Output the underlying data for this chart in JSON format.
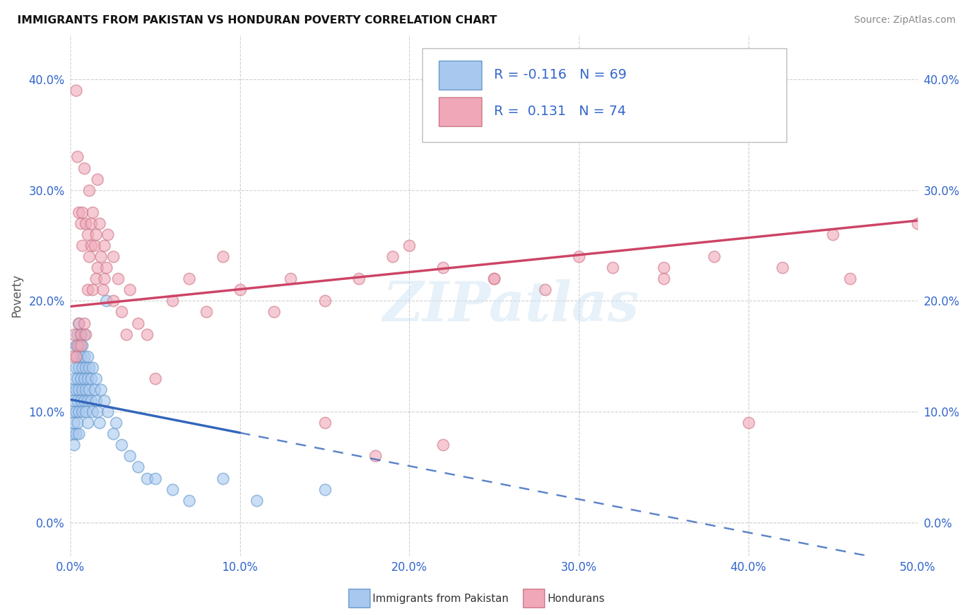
{
  "title": "IMMIGRANTS FROM PAKISTAN VS HONDURAN POVERTY CORRELATION CHART",
  "source": "Source: ZipAtlas.com",
  "xlabel_blue": "Immigrants from Pakistan",
  "xlabel_pink": "Hondurans",
  "ylabel": "Poverty",
  "watermark": "ZIPatlas",
  "legend_blue_r": "R = -0.116",
  "legend_blue_n": "N = 69",
  "legend_pink_r": "R =  0.131",
  "legend_pink_n": "N = 74",
  "blue_color": "#a8c8f0",
  "pink_color": "#f0a8b8",
  "trend_blue": "#3366bb",
  "trend_pink": "#cc4466",
  "xlim": [
    0.0,
    0.5
  ],
  "ylim": [
    -0.03,
    0.44
  ],
  "blue_scatter_x": [
    0.001,
    0.001,
    0.001,
    0.002,
    0.002,
    0.002,
    0.002,
    0.003,
    0.003,
    0.003,
    0.003,
    0.003,
    0.004,
    0.004,
    0.004,
    0.004,
    0.004,
    0.005,
    0.005,
    0.005,
    0.005,
    0.005,
    0.005,
    0.006,
    0.006,
    0.006,
    0.006,
    0.007,
    0.007,
    0.007,
    0.007,
    0.008,
    0.008,
    0.008,
    0.008,
    0.009,
    0.009,
    0.009,
    0.01,
    0.01,
    0.01,
    0.01,
    0.011,
    0.011,
    0.012,
    0.012,
    0.013,
    0.013,
    0.014,
    0.015,
    0.015,
    0.016,
    0.017,
    0.018,
    0.02,
    0.021,
    0.022,
    0.025,
    0.027,
    0.03,
    0.035,
    0.04,
    0.045,
    0.05,
    0.06,
    0.07,
    0.09,
    0.11,
    0.15
  ],
  "blue_scatter_y": [
    0.1,
    0.08,
    0.12,
    0.09,
    0.13,
    0.07,
    0.11,
    0.14,
    0.1,
    0.08,
    0.16,
    0.12,
    0.15,
    0.09,
    0.13,
    0.17,
    0.11,
    0.16,
    0.12,
    0.08,
    0.14,
    0.18,
    0.1,
    0.15,
    0.11,
    0.17,
    0.13,
    0.14,
    0.1,
    0.16,
    0.12,
    0.15,
    0.11,
    0.13,
    0.17,
    0.12,
    0.14,
    0.1,
    0.13,
    0.15,
    0.11,
    0.09,
    0.14,
    0.12,
    0.13,
    0.11,
    0.14,
    0.1,
    0.12,
    0.13,
    0.11,
    0.1,
    0.09,
    0.12,
    0.11,
    0.2,
    0.1,
    0.08,
    0.09,
    0.07,
    0.06,
    0.05,
    0.04,
    0.04,
    0.03,
    0.02,
    0.04,
    0.02,
    0.03
  ],
  "pink_scatter_x": [
    0.001,
    0.002,
    0.003,
    0.003,
    0.004,
    0.004,
    0.005,
    0.005,
    0.006,
    0.006,
    0.006,
    0.007,
    0.007,
    0.008,
    0.008,
    0.009,
    0.009,
    0.01,
    0.01,
    0.011,
    0.011,
    0.012,
    0.012,
    0.013,
    0.013,
    0.014,
    0.015,
    0.015,
    0.016,
    0.016,
    0.017,
    0.018,
    0.019,
    0.02,
    0.02,
    0.021,
    0.022,
    0.025,
    0.025,
    0.028,
    0.03,
    0.033,
    0.035,
    0.04,
    0.045,
    0.05,
    0.06,
    0.07,
    0.08,
    0.09,
    0.1,
    0.12,
    0.13,
    0.15,
    0.17,
    0.19,
    0.22,
    0.25,
    0.28,
    0.32,
    0.35,
    0.38,
    0.42,
    0.46,
    0.2,
    0.25,
    0.3,
    0.35,
    0.4,
    0.45,
    0.5,
    0.15,
    0.18,
    0.22
  ],
  "pink_scatter_y": [
    0.15,
    0.17,
    0.39,
    0.15,
    0.16,
    0.33,
    0.18,
    0.28,
    0.17,
    0.27,
    0.16,
    0.25,
    0.28,
    0.32,
    0.18,
    0.27,
    0.17,
    0.26,
    0.21,
    0.24,
    0.3,
    0.25,
    0.27,
    0.21,
    0.28,
    0.25,
    0.22,
    0.26,
    0.31,
    0.23,
    0.27,
    0.24,
    0.21,
    0.25,
    0.22,
    0.23,
    0.26,
    0.2,
    0.24,
    0.22,
    0.19,
    0.17,
    0.21,
    0.18,
    0.17,
    0.13,
    0.2,
    0.22,
    0.19,
    0.24,
    0.21,
    0.19,
    0.22,
    0.2,
    0.22,
    0.24,
    0.23,
    0.22,
    0.21,
    0.23,
    0.22,
    0.24,
    0.23,
    0.22,
    0.25,
    0.22,
    0.24,
    0.23,
    0.09,
    0.26,
    0.27,
    0.09,
    0.06,
    0.07
  ]
}
